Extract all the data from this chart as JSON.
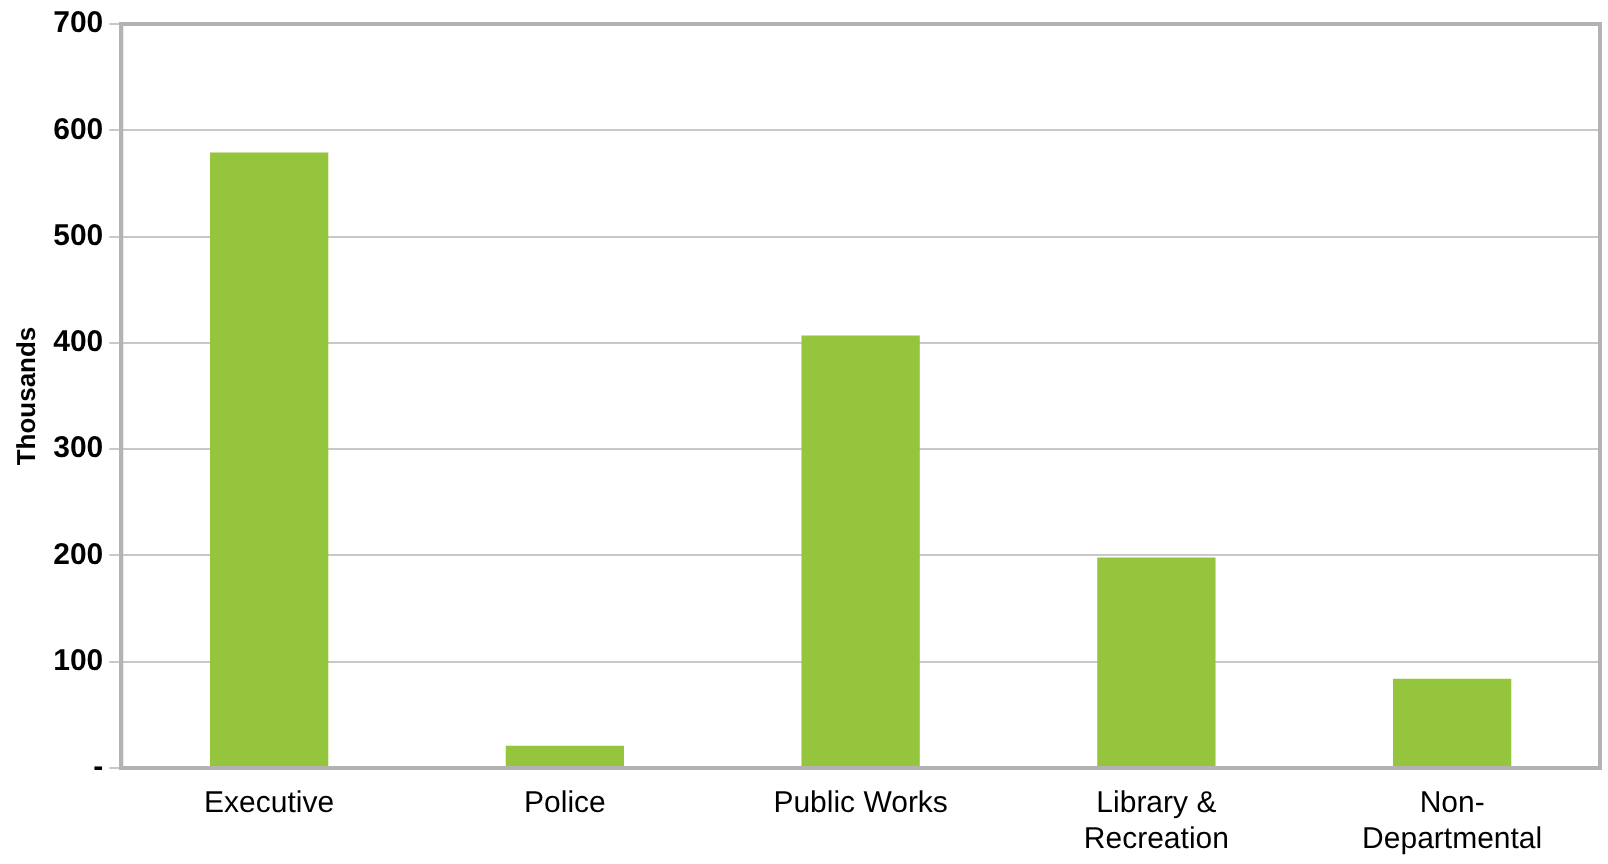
{
  "chart_data": {
    "type": "bar",
    "ylabel": "Thousands",
    "categories": [
      "Executive",
      "Police",
      "Public Works",
      "Library & Recreation",
      "Non-Departmental"
    ],
    "values": [
      579,
      21,
      407,
      198,
      84
    ],
    "color": "#95c43d",
    "ylim": [
      0,
      700
    ],
    "yticks": [
      {
        "value": 0,
        "label": "-"
      },
      100,
      200,
      300,
      400,
      500,
      600,
      700
    ],
    "grid": "y",
    "legend": false
  }
}
